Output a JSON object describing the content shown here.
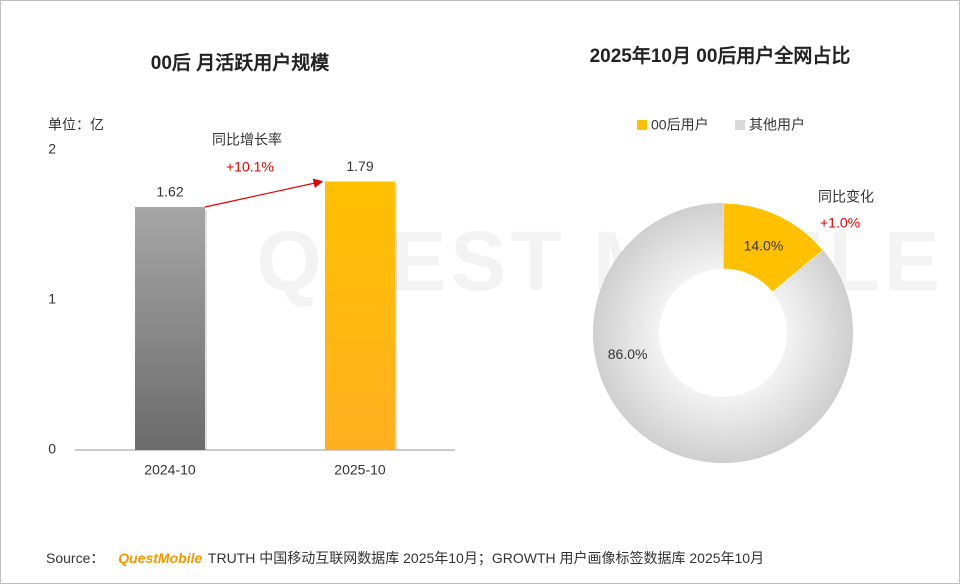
{
  "watermark": "QUEST MOBILE",
  "source": {
    "label": "Source：",
    "brand": "QuestMobile",
    "text": "TRUTH 中国移动互联网数据库 2025年10月；GROWTH 用户画像标签数据库 2025年10月"
  },
  "chart_data": [
    {
      "type": "bar",
      "title": "00后 月活跃用户规模",
      "unit_label": "单位：亿",
      "categories": [
        "2024-10",
        "2025-10"
      ],
      "values": [
        1.62,
        1.79
      ],
      "colors": [
        "#7a7a7a",
        "#ffb81c"
      ],
      "ylim": [
        0,
        2
      ],
      "yticks": [
        0,
        1,
        2
      ],
      "change_label": "同比增长率",
      "change_value": "+10.1%"
    },
    {
      "type": "donut",
      "title": "2025年10月 00后用户全网占比",
      "categories": [
        "00后用户",
        "其他用户"
      ],
      "values": [
        14.0,
        86.0
      ],
      "value_labels": [
        "14.0%",
        "86.0%"
      ],
      "colors": [
        "#ffc000",
        "#d9d9d9"
      ],
      "legend": "top",
      "change_label": "同比变化",
      "change_value": "+1.0%"
    }
  ]
}
